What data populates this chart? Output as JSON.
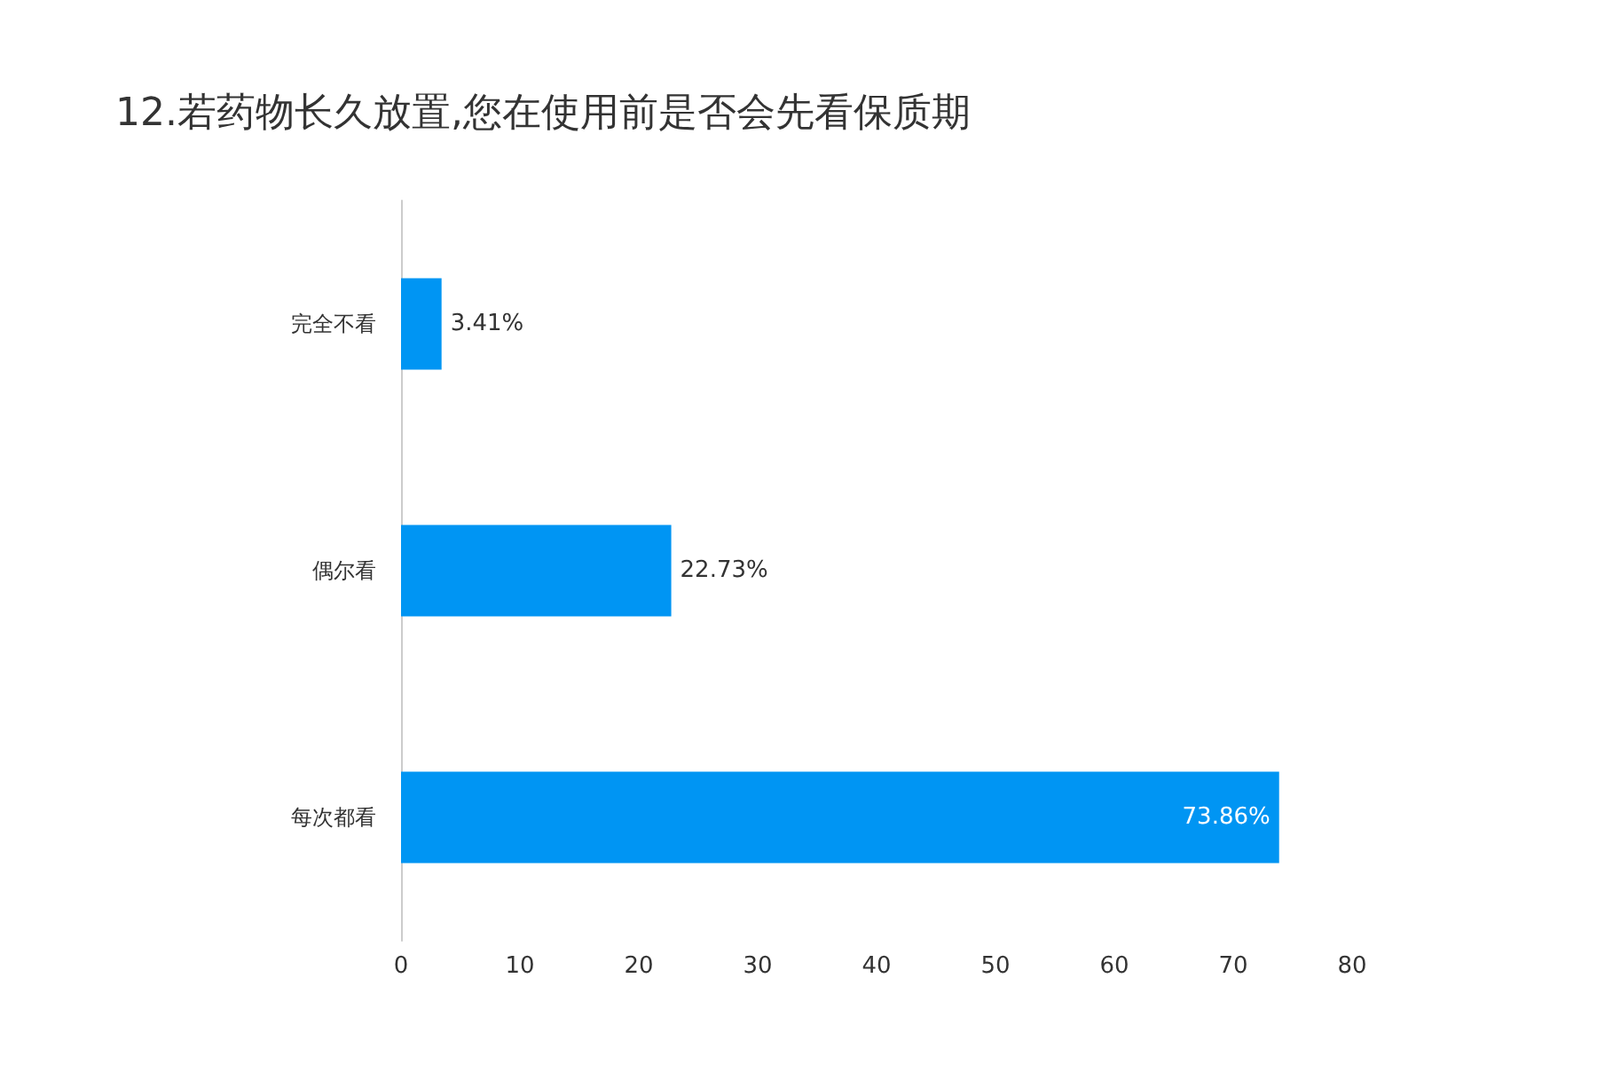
{
  "chart_data": {
    "type": "bar",
    "orientation": "horizontal",
    "title": "12.若药物长久放置,您在使用前是否会先看保质期",
    "categories": [
      "完全不看",
      "偶尔看",
      "每次都看"
    ],
    "values": [
      3.41,
      22.73,
      73.86
    ],
    "value_labels": [
      "3.41%",
      "22.73%",
      "73.86%"
    ],
    "color": "#0095f3",
    "xlim": [
      0,
      80
    ],
    "xticks": [
      0,
      10,
      20,
      30,
      40,
      50,
      60,
      70,
      80
    ],
    "grid": false
  }
}
